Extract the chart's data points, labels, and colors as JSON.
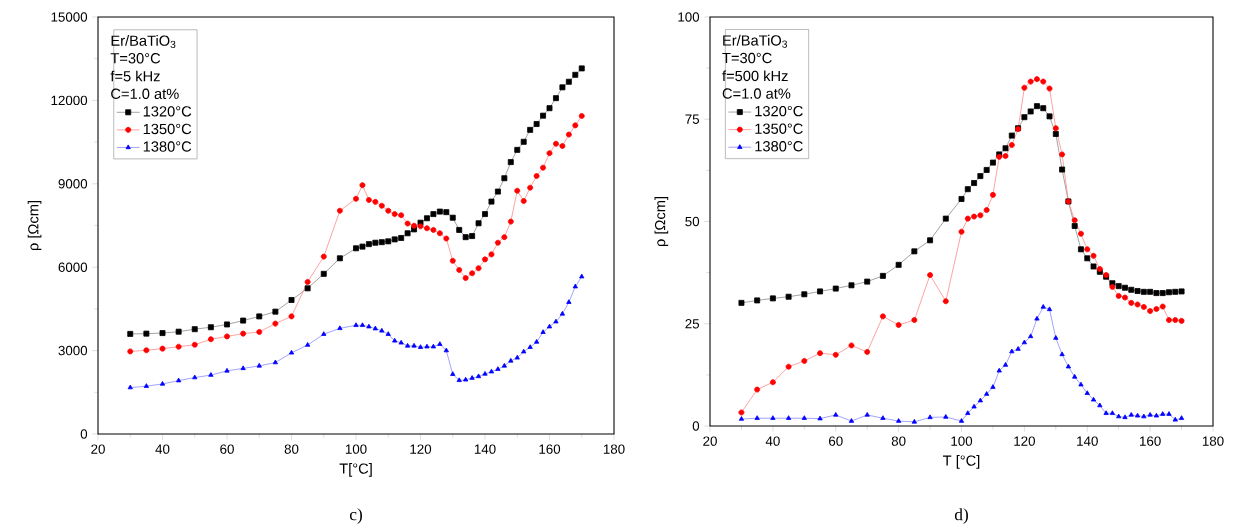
{
  "chart_data": [
    {
      "type": "line",
      "xlabel": "T[°C]",
      "ylabel": "ρ [Ωcm]",
      "legend_title": "Er/BaTiO$_{3}$",
      "legend": "top left",
      "annotations": [
        "T=30°C",
        "f=5 kHz",
        "C=1.0 at%",
        "c)"
      ],
      "x": [
        30,
        35,
        40,
        45,
        50,
        55,
        60,
        65,
        70,
        75,
        80,
        85,
        90,
        95,
        100,
        102,
        104,
        106,
        108,
        110,
        112,
        114,
        116,
        118,
        120,
        122,
        124,
        126,
        128,
        130,
        132,
        134,
        136,
        138,
        140,
        142,
        144,
        146,
        148,
        150,
        152,
        154,
        156,
        158,
        160,
        162,
        164,
        166,
        168,
        170
      ],
      "xlim": [
        20,
        180
      ],
      "ylim": [
        0,
        15000
      ],
      "xticks": [
        20,
        40,
        60,
        80,
        100,
        120,
        140,
        160,
        180
      ],
      "yticks": [
        0,
        3000,
        6000,
        9000,
        12000,
        15000
      ],
      "series": [
        {
          "name": "1320°C",
          "color": "#000000",
          "marker": "square",
          "values": [
            3600,
            3610,
            3630,
            3680,
            3770,
            3840,
            3940,
            4080,
            4230,
            4400,
            4820,
            5240,
            5760,
            6320,
            6680,
            6740,
            6830,
            6880,
            6900,
            6930,
            7000,
            7050,
            7220,
            7360,
            7600,
            7760,
            7910,
            8000,
            7980,
            7780,
            7340,
            7080,
            7120,
            7580,
            7910,
            8360,
            8720,
            9200,
            9780,
            10220,
            10510,
            10940,
            11150,
            11450,
            11720,
            12080,
            12470,
            12670,
            12920,
            13150
          ]
        },
        {
          "name": "1350°C",
          "color": "#ff0000",
          "marker": "circle",
          "values": [
            2970,
            3010,
            3070,
            3140,
            3210,
            3410,
            3510,
            3610,
            3670,
            3970,
            4230,
            5470,
            6380,
            8030,
            8460,
            8950,
            8420,
            8350,
            8210,
            8030,
            7910,
            7870,
            7570,
            7490,
            7470,
            7400,
            7340,
            7220,
            7030,
            6230,
            5900,
            5610,
            5780,
            5960,
            6280,
            6460,
            6880,
            7080,
            7640,
            8750,
            8380,
            8860,
            9280,
            9580,
            10100,
            10440,
            10360,
            10770,
            11100,
            11440
          ]
        },
        {
          "name": "1380°C",
          "color": "#0000ff",
          "marker": "triangle",
          "values": [
            1670,
            1720,
            1800,
            1920,
            2030,
            2120,
            2270,
            2360,
            2450,
            2570,
            2920,
            3200,
            3590,
            3800,
            3910,
            3910,
            3860,
            3790,
            3710,
            3590,
            3350,
            3280,
            3170,
            3170,
            3120,
            3140,
            3140,
            3230,
            3000,
            2150,
            1930,
            1950,
            2010,
            2070,
            2160,
            2240,
            2330,
            2450,
            2630,
            2740,
            2960,
            3120,
            3310,
            3660,
            3860,
            4040,
            4320,
            4740,
            5300,
            5660
          ]
        }
      ]
    },
    {
      "type": "line",
      "xlabel": "T [°C]",
      "ylabel": "ρ [Ωcm]",
      "legend_title": "Er/BaTiO$_{3}$",
      "legend": "top left",
      "annotations": [
        "T=30°C",
        "f=500 kHz",
        "C=1.0 at%",
        "d)"
      ],
      "x": [
        30,
        35,
        40,
        45,
        50,
        55,
        60,
        65,
        70,
        75,
        80,
        85,
        90,
        95,
        100,
        102,
        104,
        106,
        108,
        110,
        112,
        114,
        116,
        118,
        120,
        122,
        124,
        126,
        128,
        130,
        132,
        134,
        136,
        138,
        140,
        142,
        144,
        146,
        148,
        150,
        152,
        154,
        156,
        158,
        160,
        162,
        164,
        166,
        168,
        170
      ],
      "xlim": [
        20,
        180
      ],
      "ylim": [
        0,
        100
      ],
      "xticks": [
        20,
        40,
        60,
        80,
        100,
        120,
        140,
        160,
        180
      ],
      "yticks": [
        0,
        25,
        50,
        75,
        100
      ],
      "series": [
        {
          "name": "1320°C",
          "color": "#000000",
          "marker": "square",
          "values": [
            30.1,
            30.7,
            31.2,
            31.6,
            32.2,
            32.9,
            33.6,
            34.4,
            35.3,
            36.7,
            39.4,
            42.7,
            45.4,
            50.7,
            55.5,
            57.9,
            59.4,
            61.1,
            62.6,
            64.4,
            66.4,
            67.9,
            71.0,
            72.8,
            75.5,
            76.9,
            78.2,
            77.7,
            75.7,
            71.4,
            62.7,
            54.9,
            48.9,
            43.2,
            41.0,
            39.0,
            37.7,
            36.5,
            34.9,
            34.2,
            33.8,
            33.3,
            33.0,
            32.8,
            32.8,
            32.5,
            32.5,
            32.7,
            32.8,
            32.9
          ]
        },
        {
          "name": "1350°C",
          "color": "#ff0000",
          "marker": "circle",
          "values": [
            3.3,
            8.9,
            10.7,
            14.5,
            15.9,
            17.8,
            17.4,
            19.7,
            18.1,
            26.8,
            24.7,
            25.9,
            36.9,
            30.5,
            47.5,
            50.7,
            51.2,
            51.5,
            52.8,
            56.5,
            65.8,
            66.0,
            68.7,
            72.6,
            82.7,
            84.2,
            84.8,
            84.2,
            82.5,
            72.8,
            66.4,
            54.9,
            50.3,
            47.0,
            43.2,
            41.6,
            38.4,
            36.9,
            34.0,
            31.8,
            31.4,
            30.1,
            29.7,
            29.1,
            28.1,
            28.6,
            29.2,
            25.9,
            25.9,
            25.7
          ]
        },
        {
          "name": "1380°C",
          "color": "#0000ff",
          "marker": "triangle",
          "values": [
            1.7,
            1.9,
            1.9,
            1.9,
            1.9,
            1.8,
            2.7,
            1.2,
            2.7,
            1.9,
            1.2,
            1.0,
            2.1,
            2.2,
            1.2,
            3.1,
            4.7,
            6.2,
            7.8,
            9.5,
            13.5,
            14.9,
            18.2,
            18.8,
            20.4,
            21.9,
            26.2,
            29.1,
            28.5,
            21.5,
            17.5,
            14.5,
            12.0,
            10.1,
            8.0,
            6.4,
            5.0,
            3.1,
            3.1,
            2.3,
            2.1,
            2.7,
            2.5,
            2.3,
            2.7,
            2.5,
            2.9,
            2.9,
            1.5,
            1.9
          ]
        }
      ]
    }
  ]
}
